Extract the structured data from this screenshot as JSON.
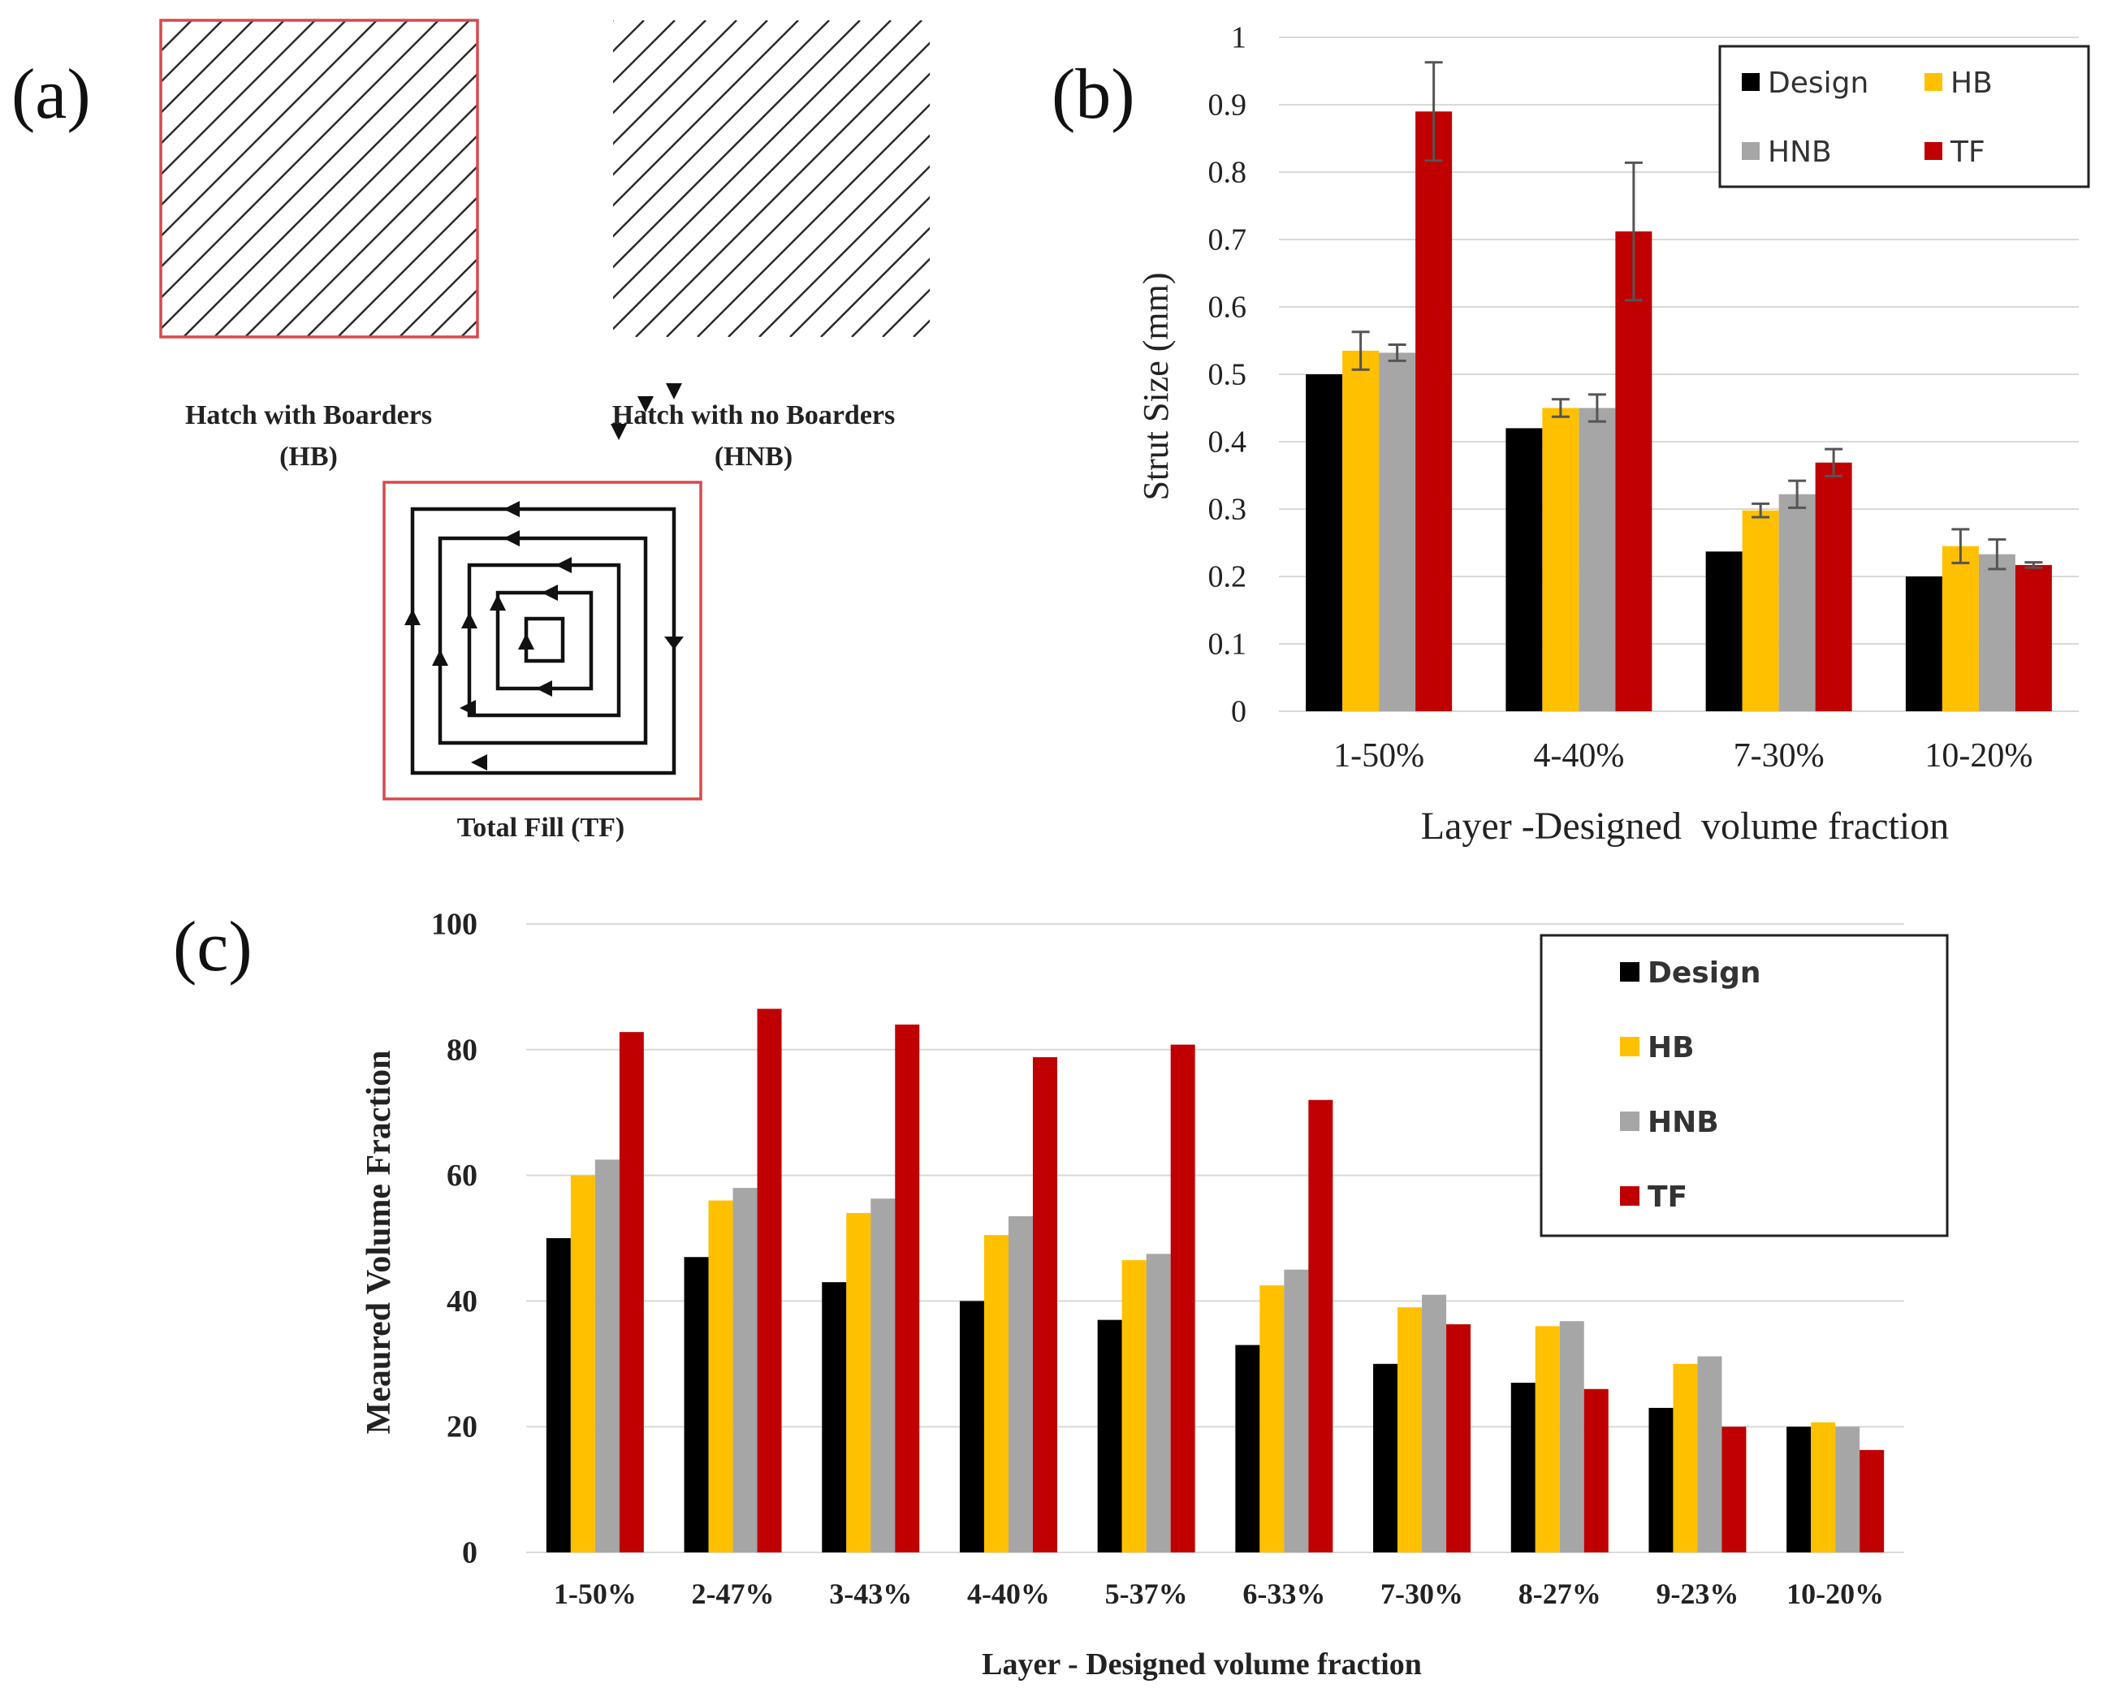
{
  "panel_a": {
    "label": "(a)",
    "hb_caption_1": "Hatch with Boarders",
    "hb_caption_2": "(HB)",
    "hnb_caption_1": "Hatch with no Boarders",
    "hnb_caption_2": "(HNB)",
    "tf_caption": "Total Fill (TF)",
    "border_color": "#d9484d",
    "hatch_color": "#2b2b2b"
  },
  "chart_data": [
    {
      "panel_label": "(b)",
      "type": "bar",
      "categories": [
        "1-50%",
        "4-40%",
        "7-30%",
        "10-20%"
      ],
      "series": [
        {
          "name": "Design",
          "color": "#000000",
          "values": [
            0.5,
            0.42,
            0.237,
            0.2
          ]
        },
        {
          "name": "HB",
          "color": "#ffc000",
          "values": [
            0.535,
            0.45,
            0.298,
            0.245
          ],
          "errors": [
            0.028,
            0.013,
            0.01,
            0.025
          ]
        },
        {
          "name": "HNB",
          "color": "#a6a6a6",
          "values": [
            0.532,
            0.45,
            0.322,
            0.233
          ],
          "errors": [
            0.012,
            0.02,
            0.02,
            0.022
          ]
        },
        {
          "name": "TF",
          "color": "#c00000",
          "values": [
            0.89,
            0.712,
            0.369,
            0.217
          ],
          "errors": [
            0.073,
            0.102,
            0.02,
            0.004
          ]
        }
      ],
      "title": "",
      "xlabel": "Layer -Designed  volume fraction",
      "ylabel": "Strut Size (mm)",
      "ylim": [
        0,
        1
      ],
      "yticks": [
        "0",
        "0.1",
        "0.2",
        "0.3",
        "0.4",
        "0.5",
        "0.6",
        "0.7",
        "0.8",
        "0.9",
        "1"
      ],
      "grid": true,
      "legend": "top-right"
    },
    {
      "panel_label": "(c)",
      "type": "bar",
      "categories": [
        "1-50%",
        "2-47%",
        "3-43%",
        "4-40%",
        "5-37%",
        "6-33%",
        "7-30%",
        "8-27%",
        "9-23%",
        "10-20%"
      ],
      "series": [
        {
          "name": "Design",
          "color": "#000000",
          "values": [
            50,
            47,
            43,
            40,
            37,
            33,
            30,
            27,
            23,
            20
          ]
        },
        {
          "name": "HB",
          "color": "#ffc000",
          "values": [
            60,
            56,
            54,
            50.5,
            46.5,
            42.5,
            39,
            36,
            30,
            20.7
          ]
        },
        {
          "name": "HNB",
          "color": "#a6a6a6",
          "values": [
            62.5,
            58,
            56.3,
            53.5,
            47.5,
            45,
            41,
            36.8,
            31.2,
            20
          ]
        },
        {
          "name": "TF",
          "color": "#c00000",
          "values": [
            82.8,
            86.5,
            84,
            78.8,
            80.8,
            72,
            36.3,
            26,
            20,
            16.3
          ]
        }
      ],
      "title": "",
      "xlabel": "Layer - Designed volume fraction",
      "ylabel": "Meaured Volume Fraction",
      "ylim": [
        0,
        100
      ],
      "yticks": [
        "0",
        "20",
        "40",
        "60",
        "80",
        "100"
      ],
      "grid": true,
      "legend": "top-right"
    }
  ]
}
